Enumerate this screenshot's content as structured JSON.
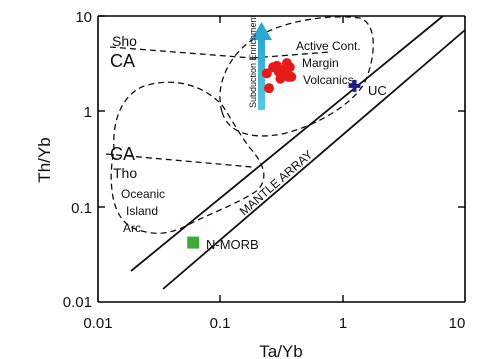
{
  "chart_data": {
    "type": "scatter",
    "xscale": "log",
    "yscale": "log",
    "xlim": [
      0.01,
      10
    ],
    "ylim": [
      0.01,
      10
    ],
    "xlabel": "Ta/Yb",
    "ylabel": "Th/Yb",
    "x_tick_labels": [
      "0.01",
      "0.1",
      "1",
      "10"
    ],
    "y_tick_labels": [
      "0.01",
      "0.1",
      "1",
      "10"
    ],
    "grid": false,
    "series": [
      {
        "name": "Active Cont. Margin Volcanics",
        "marker": "circle",
        "color": "#e31b1b",
        "points": [
          [
            0.27,
            2.9
          ],
          [
            0.3,
            2.6
          ],
          [
            0.33,
            2.5
          ],
          [
            0.35,
            3.2
          ],
          [
            0.37,
            2.9
          ],
          [
            0.38,
            2.3
          ],
          [
            0.31,
            2.2
          ],
          [
            0.36,
            2.3
          ],
          [
            0.24,
            2.5
          ],
          [
            0.29,
            3.0
          ],
          [
            0.25,
            1.75
          ],
          [
            0.34,
            2.8
          ]
        ]
      },
      {
        "name": "UC",
        "marker": "plus",
        "color": "#1c1c8c",
        "points": [
          [
            1.25,
            1.85
          ]
        ]
      },
      {
        "name": "N-MORB",
        "marker": "square",
        "color": "#3aa935",
        "points": [
          [
            0.06,
            0.042
          ]
        ]
      }
    ],
    "labels": {
      "sho": "Sho",
      "ca_upper": "CA",
      "ca_lower": "CA",
      "tho": "Tho",
      "oia_1": "Oceanic",
      "oia_2": "Island",
      "oia_3": "Arc",
      "acm_1": "Active Cont.",
      "acm_2": "Margin",
      "acm_3": "Volcanics",
      "uc": "UC",
      "nmorb": "N-MORB",
      "mantle_array": "MANTLE ARRAY",
      "subduction": "Subduction Enrichment"
    },
    "colors": {
      "arrow": "#2aa8d0",
      "axes": "#000000"
    }
  }
}
